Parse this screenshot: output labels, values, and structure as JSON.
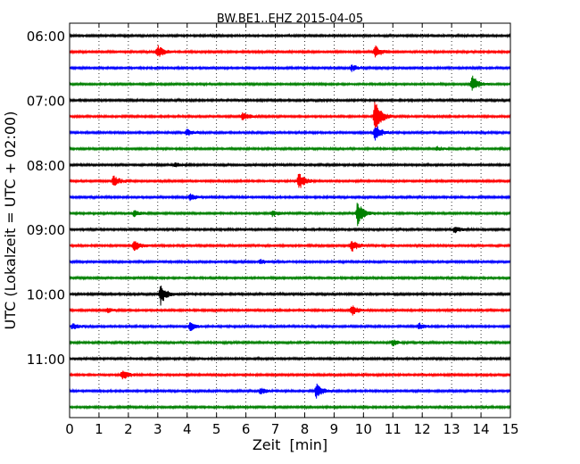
{
  "chart_data": {
    "type": "line",
    "title": "BW.BE1..EHZ 2015-04-05",
    "xlabel": "Zeit  [min]",
    "ylabel": "UTC (Lokalzeit = UTC + 02:00)",
    "xlim": [
      0,
      15
    ],
    "x_ticks": [
      "0",
      "1",
      "2",
      "3",
      "4",
      "5",
      "6",
      "7",
      "8",
      "9",
      "10",
      "11",
      "12",
      "13",
      "14",
      "15"
    ],
    "grid": true,
    "trace_colors": [
      "#000000",
      "#ff0000",
      "#0000ff",
      "#008000"
    ],
    "trace_interval_min": 15,
    "traces": [
      {
        "start": "06:00",
        "color": "#000000",
        "events": []
      },
      {
        "start": "06:15",
        "color": "#ff0000",
        "events": [
          {
            "x": 3.0,
            "amp": 0.6
          },
          {
            "x": 10.4,
            "amp": 0.6
          }
        ]
      },
      {
        "start": "06:30",
        "color": "#0000ff",
        "events": [
          {
            "x": 9.6,
            "amp": 0.3
          }
        ]
      },
      {
        "start": "06:45",
        "color": "#008000",
        "events": [
          {
            "x": 13.7,
            "amp": 0.8
          }
        ]
      },
      {
        "start": "07:00",
        "color": "#000000",
        "events": []
      },
      {
        "start": "07:15",
        "color": "#ff0000",
        "events": [
          {
            "x": 5.9,
            "amp": 0.4
          },
          {
            "x": 10.4,
            "amp": 1.6
          }
        ]
      },
      {
        "start": "07:30",
        "color": "#0000ff",
        "events": [
          {
            "x": 4.0,
            "amp": 0.3
          },
          {
            "x": 10.4,
            "amp": 0.8
          }
        ]
      },
      {
        "start": "07:45",
        "color": "#008000",
        "events": [
          {
            "x": 12.5,
            "amp": 0.2
          }
        ]
      },
      {
        "start": "08:00",
        "color": "#000000",
        "events": [
          {
            "x": 3.6,
            "amp": 0.2
          }
        ]
      },
      {
        "start": "08:15",
        "color": "#ff0000",
        "events": [
          {
            "x": 1.5,
            "amp": 0.5
          },
          {
            "x": 7.8,
            "amp": 0.8
          }
        ]
      },
      {
        "start": "08:30",
        "color": "#0000ff",
        "events": [
          {
            "x": 4.1,
            "amp": 0.3
          }
        ]
      },
      {
        "start": "08:45",
        "color": "#008000",
        "events": [
          {
            "x": 2.2,
            "amp": 0.3
          },
          {
            "x": 6.9,
            "amp": 0.3
          },
          {
            "x": 9.8,
            "amp": 1.1
          }
        ]
      },
      {
        "start": "09:00",
        "color": "#000000",
        "events": [
          {
            "x": 13.1,
            "amp": 0.3
          }
        ]
      },
      {
        "start": "09:15",
        "color": "#ff0000",
        "events": [
          {
            "x": 2.2,
            "amp": 0.6
          },
          {
            "x": 9.6,
            "amp": 0.6
          }
        ]
      },
      {
        "start": "09:30",
        "color": "#0000ff",
        "events": [
          {
            "x": 6.5,
            "amp": 0.2
          }
        ]
      },
      {
        "start": "09:45",
        "color": "#008000",
        "events": []
      },
      {
        "start": "10:00",
        "color": "#000000",
        "events": [
          {
            "x": 3.1,
            "amp": 1.0
          }
        ]
      },
      {
        "start": "10:15",
        "color": "#ff0000",
        "events": [
          {
            "x": 1.3,
            "amp": 0.2
          },
          {
            "x": 9.6,
            "amp": 0.5
          }
        ]
      },
      {
        "start": "10:30",
        "color": "#0000ff",
        "events": [
          {
            "x": 0.1,
            "amp": 0.3
          },
          {
            "x": 4.1,
            "amp": 0.4
          },
          {
            "x": 11.9,
            "amp": 0.3
          }
        ]
      },
      {
        "start": "10:45",
        "color": "#008000",
        "events": [
          {
            "x": 11.0,
            "amp": 0.3
          }
        ]
      },
      {
        "start": "11:00",
        "color": "#000000",
        "events": []
      },
      {
        "start": "11:15",
        "color": "#ff0000",
        "events": [
          {
            "x": 1.8,
            "amp": 0.5
          }
        ]
      },
      {
        "start": "11:30",
        "color": "#0000ff",
        "events": [
          {
            "x": 6.5,
            "amp": 0.3
          },
          {
            "x": 8.4,
            "amp": 0.7
          }
        ]
      },
      {
        "start": "11:45",
        "color": "#008000",
        "events": []
      }
    ],
    "y_tick_labels": [
      "06:00",
      "07:00",
      "08:00",
      "09:00",
      "10:00",
      "11:00"
    ]
  }
}
